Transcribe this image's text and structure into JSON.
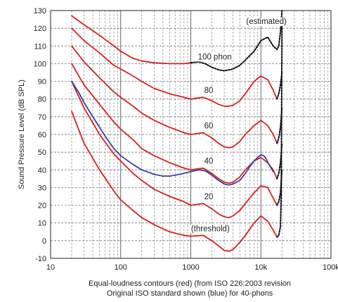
{
  "chart_data": {
    "type": "line",
    "x_scale": "log",
    "xlim": [
      10,
      100000
    ],
    "ylim": [
      -10,
      130
    ],
    "x_ticks": [
      10,
      100,
      1000,
      10000,
      100000
    ],
    "x_tick_labels": [
      "10",
      "100",
      "1000",
      "10k",
      "100k"
    ],
    "y_ticks": [
      -10,
      0,
      10,
      20,
      30,
      40,
      50,
      60,
      70,
      80,
      90,
      100,
      110,
      120,
      130
    ],
    "y_tick_labels": [
      "-10",
      "0",
      "10",
      "20",
      "30",
      "40",
      "50",
      "60",
      "70",
      "80",
      "90",
      "100",
      "110",
      "120",
      "130"
    ],
    "grid": "on (solid major, dashed minor)",
    "ylabel": "Sound Pressure Level (dB SPL)",
    "caption_line1": "Equal-loudness contours (red) (from ISO 226:2003 revision",
    "caption_line2": "Original ISO standard shown (blue) for 40-phons",
    "colors": {
      "red": "#d62020",
      "blue": "#3a3ea0",
      "black": "#111111"
    },
    "series": [
      {
        "name": "threshold",
        "color": "red",
        "style": "solid",
        "x": [
          20,
          30,
          50,
          80,
          100,
          150,
          200,
          300,
          500,
          800,
          1000,
          1500,
          2000,
          2500,
          3000,
          3500,
          4000,
          5000,
          6000,
          8000,
          10000,
          12500,
          15000,
          17000
        ],
        "y": [
          73,
          55,
          40,
          28,
          23,
          17,
          13,
          9,
          5,
          3,
          2.5,
          3,
          0,
          -3,
          -5.5,
          -6,
          -5,
          -1,
          3,
          10,
          14,
          11,
          6,
          2
        ]
      },
      {
        "name": "threshold-ext",
        "color": "black",
        "style": "dotted",
        "x": [
          17000,
          18000,
          19000,
          19500,
          20000
        ],
        "y": [
          2,
          3,
          8,
          25,
          125
        ]
      },
      {
        "name": "20",
        "color": "red",
        "style": "solid",
        "x": [
          20,
          30,
          50,
          80,
          100,
          150,
          200,
          300,
          500,
          800,
          1000,
          1500,
          2000,
          2500,
          3000,
          3500,
          4000,
          5000,
          6000,
          8000,
          10000,
          12500,
          15000,
          17000
        ],
        "y": [
          90,
          75,
          60,
          49,
          45,
          38,
          34,
          29,
          25,
          22,
          20,
          21,
          18,
          15,
          13.5,
          13,
          14,
          17,
          21,
          27,
          31,
          30,
          24,
          20
        ]
      },
      {
        "name": "20-ext",
        "color": "black",
        "style": "dotted",
        "x": [
          17000,
          18000,
          19000,
          20000
        ],
        "y": [
          20,
          22,
          27,
          40
        ]
      },
      {
        "name": "40",
        "color": "red",
        "style": "solid",
        "x": [
          20,
          30,
          50,
          80,
          100,
          150,
          200,
          300,
          500,
          800,
          1000,
          1500,
          2000,
          2500,
          3000,
          3500,
          4000,
          5000,
          6000,
          8000,
          10000,
          12500,
          15000,
          17000
        ],
        "y": [
          100,
          88,
          77,
          67,
          63,
          57,
          52,
          48,
          44,
          41,
          40,
          41,
          38,
          35,
          33,
          32.5,
          33,
          36,
          40,
          45,
          47,
          44,
          40,
          35
        ]
      },
      {
        "name": "40-ext",
        "color": "black",
        "style": "dotted",
        "x": [
          17000,
          18000,
          19000,
          20000
        ],
        "y": [
          35,
          38,
          44,
          55
        ]
      },
      {
        "name": "60",
        "color": "red",
        "style": "solid",
        "x": [
          20,
          30,
          50,
          80,
          100,
          150,
          200,
          300,
          500,
          800,
          1000,
          1500,
          2000,
          2500,
          3000,
          3500,
          4000,
          5000,
          6000,
          8000,
          10000,
          12500,
          15000,
          17000
        ],
        "y": [
          110,
          101,
          92,
          84,
          81,
          76,
          72,
          68,
          64,
          61,
          60,
          61,
          58,
          55,
          53,
          52.5,
          53,
          56,
          60,
          65,
          68,
          65,
          60,
          55
        ]
      },
      {
        "name": "60-ext",
        "color": "black",
        "style": "dotted",
        "x": [
          17000,
          18000,
          19000,
          20000
        ],
        "y": [
          55,
          58,
          64,
          75
        ]
      },
      {
        "name": "80",
        "color": "red",
        "style": "solid",
        "x": [
          20,
          30,
          50,
          80,
          100,
          150,
          200,
          300,
          500,
          800,
          1000,
          1500,
          2000,
          2500,
          3000,
          3500,
          4000,
          5000,
          6000,
          8000,
          10000,
          12500,
          15000,
          17000
        ],
        "y": [
          120,
          113,
          106,
          99,
          97,
          93,
          90,
          86,
          83,
          81,
          80,
          81,
          79,
          77,
          76,
          76,
          76.5,
          79,
          83,
          90,
          93,
          91,
          85,
          80
        ]
      },
      {
        "name": "80-ext",
        "color": "black",
        "style": "dotted",
        "x": [
          17000,
          18000,
          19000,
          20000
        ],
        "y": [
          80,
          83,
          88,
          95
        ]
      },
      {
        "name": "100",
        "color": "red",
        "style": "solid",
        "x": [
          20,
          30,
          50,
          80,
          100,
          150,
          200,
          300,
          500,
          800,
          1000
        ],
        "y": [
          127,
          122,
          116,
          110,
          107,
          103,
          101.5,
          100.5,
          100,
          100,
          100.5
        ]
      },
      {
        "name": "100-ext",
        "color": "black",
        "style": "dotted",
        "x": [
          1000,
          1300,
          1600,
          2000,
          2500,
          3000,
          3500,
          4000,
          5000,
          6000,
          8000,
          10000,
          12500,
          15000,
          17000,
          18000,
          19000,
          20000
        ],
        "y": [
          100.5,
          101,
          100,
          98,
          96.5,
          96,
          96.5,
          97,
          99,
          102,
          107,
          113,
          115,
          110,
          108,
          110,
          118,
          130
        ]
      },
      {
        "name": "original ISO 40 phon",
        "color": "blue",
        "style": "solid",
        "x": [
          20,
          25,
          30,
          40,
          50,
          60,
          80,
          100,
          150,
          200,
          300,
          400,
          500,
          700,
          1000,
          1300,
          1600,
          2000,
          2500,
          3000,
          3500,
          4000,
          5000,
          6000,
          7000,
          8000,
          9000,
          10000,
          11000,
          12000,
          13000,
          14000,
          15000
        ],
        "y": [
          90,
          84,
          78,
          70,
          64,
          59,
          52,
          48,
          43,
          40,
          37.5,
          36.5,
          36.5,
          37.5,
          39,
          40,
          39.5,
          37,
          34,
          32,
          31.5,
          32,
          34,
          38,
          42,
          45,
          47,
          48.5,
          48,
          46,
          43,
          41,
          39
        ]
      }
    ],
    "annotations": [
      {
        "text": "(estimated)",
        "x": 12000,
        "y": 124
      },
      {
        "text": "100 phon",
        "x": 2200,
        "y": 104
      },
      {
        "text": "80",
        "x": 1800,
        "y": 85
      },
      {
        "text": "60",
        "x": 1800,
        "y": 65
      },
      {
        "text": "40",
        "x": 1800,
        "y": 45
      },
      {
        "text": "20",
        "x": 1800,
        "y": 25
      },
      {
        "text": "(threshold)",
        "x": 1900,
        "y": 7
      }
    ]
  }
}
